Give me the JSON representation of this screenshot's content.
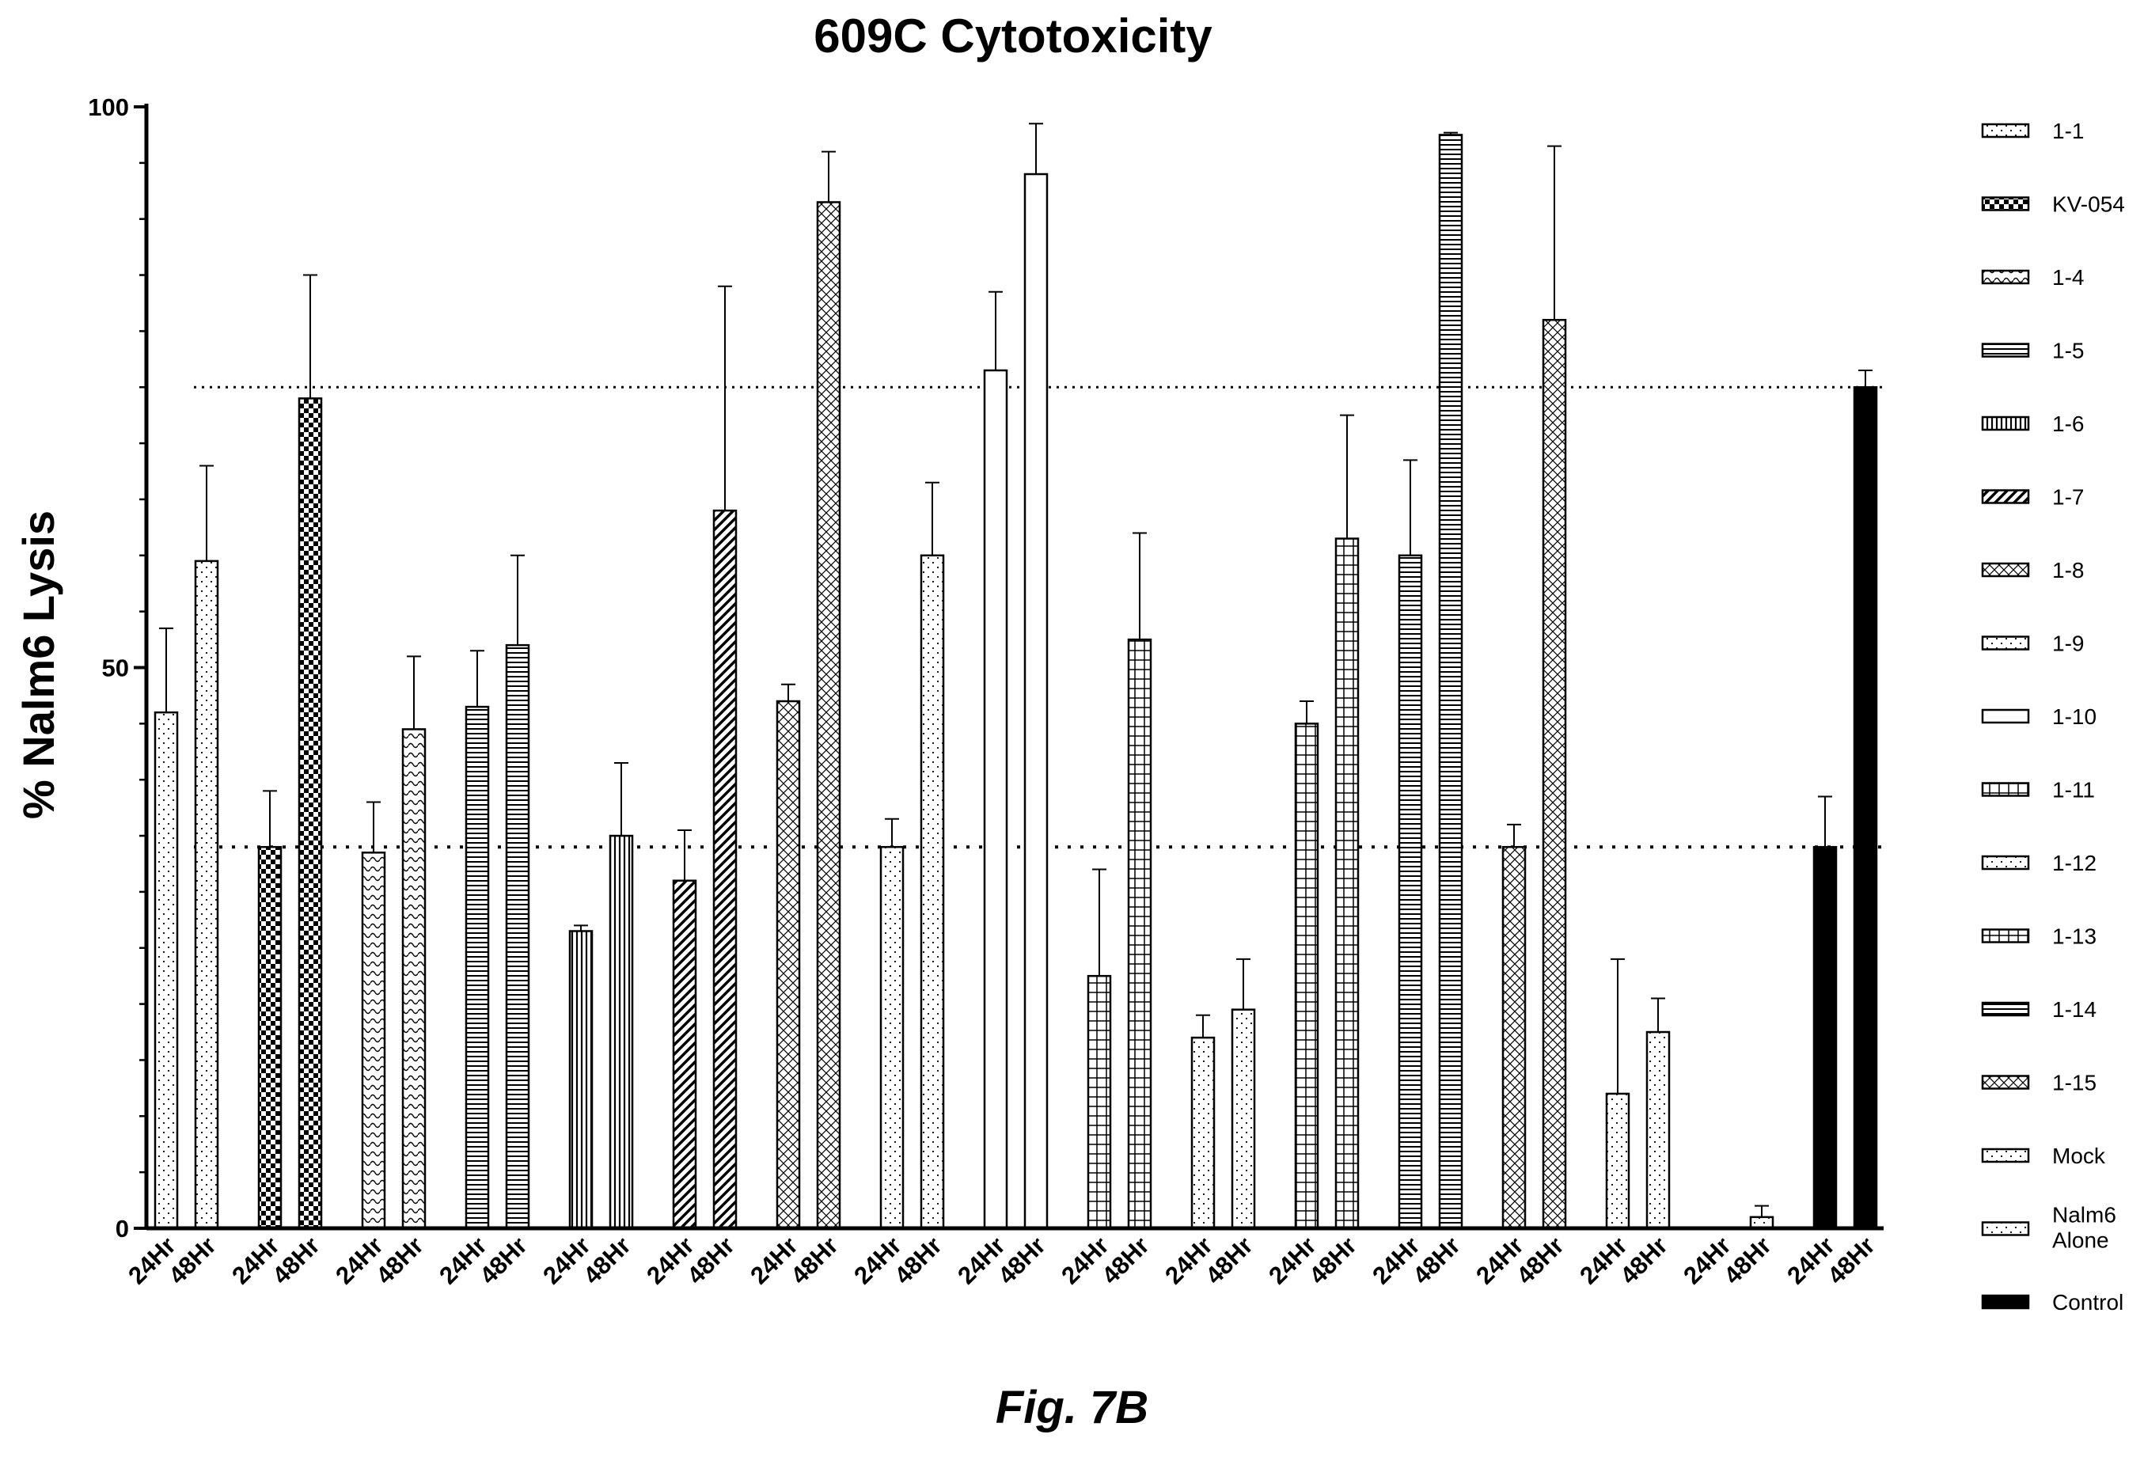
{
  "figure_caption": "Fig. 7B",
  "patterns": {
    "dots": {
      "kind": "dots",
      "color": "#000000"
    },
    "checker": {
      "kind": "checker",
      "color": "#000000"
    },
    "wave": {
      "kind": "wave",
      "color": "#000000"
    },
    "hstripe": {
      "kind": "hstripe",
      "color": "#000000"
    },
    "vstripe": {
      "kind": "vstripe",
      "color": "#000000"
    },
    "diag": {
      "kind": "diag",
      "color": "#000000"
    },
    "crosshatch": {
      "kind": "crosshatch",
      "color": "#000000"
    },
    "grid": {
      "kind": "grid",
      "color": "#000000"
    },
    "solid": {
      "kind": "solid",
      "color": "#000000"
    },
    "none": {
      "kind": "none",
      "color": "#ffffff"
    }
  },
  "chart_data": {
    "type": "bar",
    "title": "609C Cytotoxicity",
    "xlabel": "",
    "ylabel": "% Nalm6 Lysis",
    "ylim": [
      0,
      100
    ],
    "yticks": [
      0,
      50,
      100
    ],
    "grid": false,
    "legend_position": "right",
    "reference_lines": [
      75,
      34
    ],
    "categories": [
      "24Hr",
      "48Hr"
    ],
    "series": [
      {
        "name": "1-1",
        "pattern": "dots",
        "values": [
          46,
          59.5
        ],
        "errors": [
          7.5,
          8.5
        ]
      },
      {
        "name": "KV-054",
        "pattern": "checker",
        "values": [
          34,
          74
        ],
        "errors": [
          5,
          11
        ]
      },
      {
        "name": "1-4",
        "pattern": "wave",
        "values": [
          33.5,
          44.5
        ],
        "errors": [
          4.5,
          6.5
        ]
      },
      {
        "name": "1-5",
        "pattern": "hstripe",
        "values": [
          46.5,
          52
        ],
        "errors": [
          5,
          8
        ]
      },
      {
        "name": "1-6",
        "pattern": "vstripe",
        "values": [
          26.5,
          35
        ],
        "errors": [
          0.5,
          6.5
        ]
      },
      {
        "name": "1-7",
        "pattern": "diag",
        "values": [
          31,
          64
        ],
        "errors": [
          4.5,
          20
        ]
      },
      {
        "name": "1-8",
        "pattern": "crosshatch",
        "values": [
          47,
          91.5
        ],
        "errors": [
          1.5,
          4.5
        ]
      },
      {
        "name": "1-9",
        "pattern": "dots",
        "values": [
          34,
          60
        ],
        "errors": [
          2.5,
          6.5
        ]
      },
      {
        "name": "1-10",
        "pattern": "none",
        "values": [
          76.5,
          94
        ],
        "errors": [
          7,
          4.5
        ]
      },
      {
        "name": "1-11",
        "pattern": "grid",
        "values": [
          22.5,
          52.5
        ],
        "errors": [
          9.5,
          9.5
        ]
      },
      {
        "name": "1-12",
        "pattern": "dots",
        "values": [
          17,
          19.5
        ],
        "errors": [
          2,
          4.5
        ]
      },
      {
        "name": "1-13",
        "pattern": "grid",
        "values": [
          45,
          61.5
        ],
        "errors": [
          2,
          11
        ]
      },
      {
        "name": "1-14",
        "pattern": "hstripe",
        "values": [
          60,
          97.5
        ],
        "errors": [
          8.5,
          0.2
        ]
      },
      {
        "name": "1-15",
        "pattern": "crosshatch",
        "values": [
          34,
          81
        ],
        "errors": [
          2,
          15.5
        ]
      },
      {
        "name": "Mock",
        "pattern": "dots",
        "values": [
          12,
          17.5
        ],
        "errors": [
          12,
          3
        ]
      },
      {
        "name": "Nalm6 Alone",
        "pattern": "dots",
        "values": [
          0,
          1
        ],
        "errors": [
          0,
          1
        ]
      },
      {
        "name": "Control",
        "pattern": "solid",
        "values": [
          34,
          75
        ],
        "errors": [
          4.5,
          1.5
        ]
      }
    ]
  }
}
